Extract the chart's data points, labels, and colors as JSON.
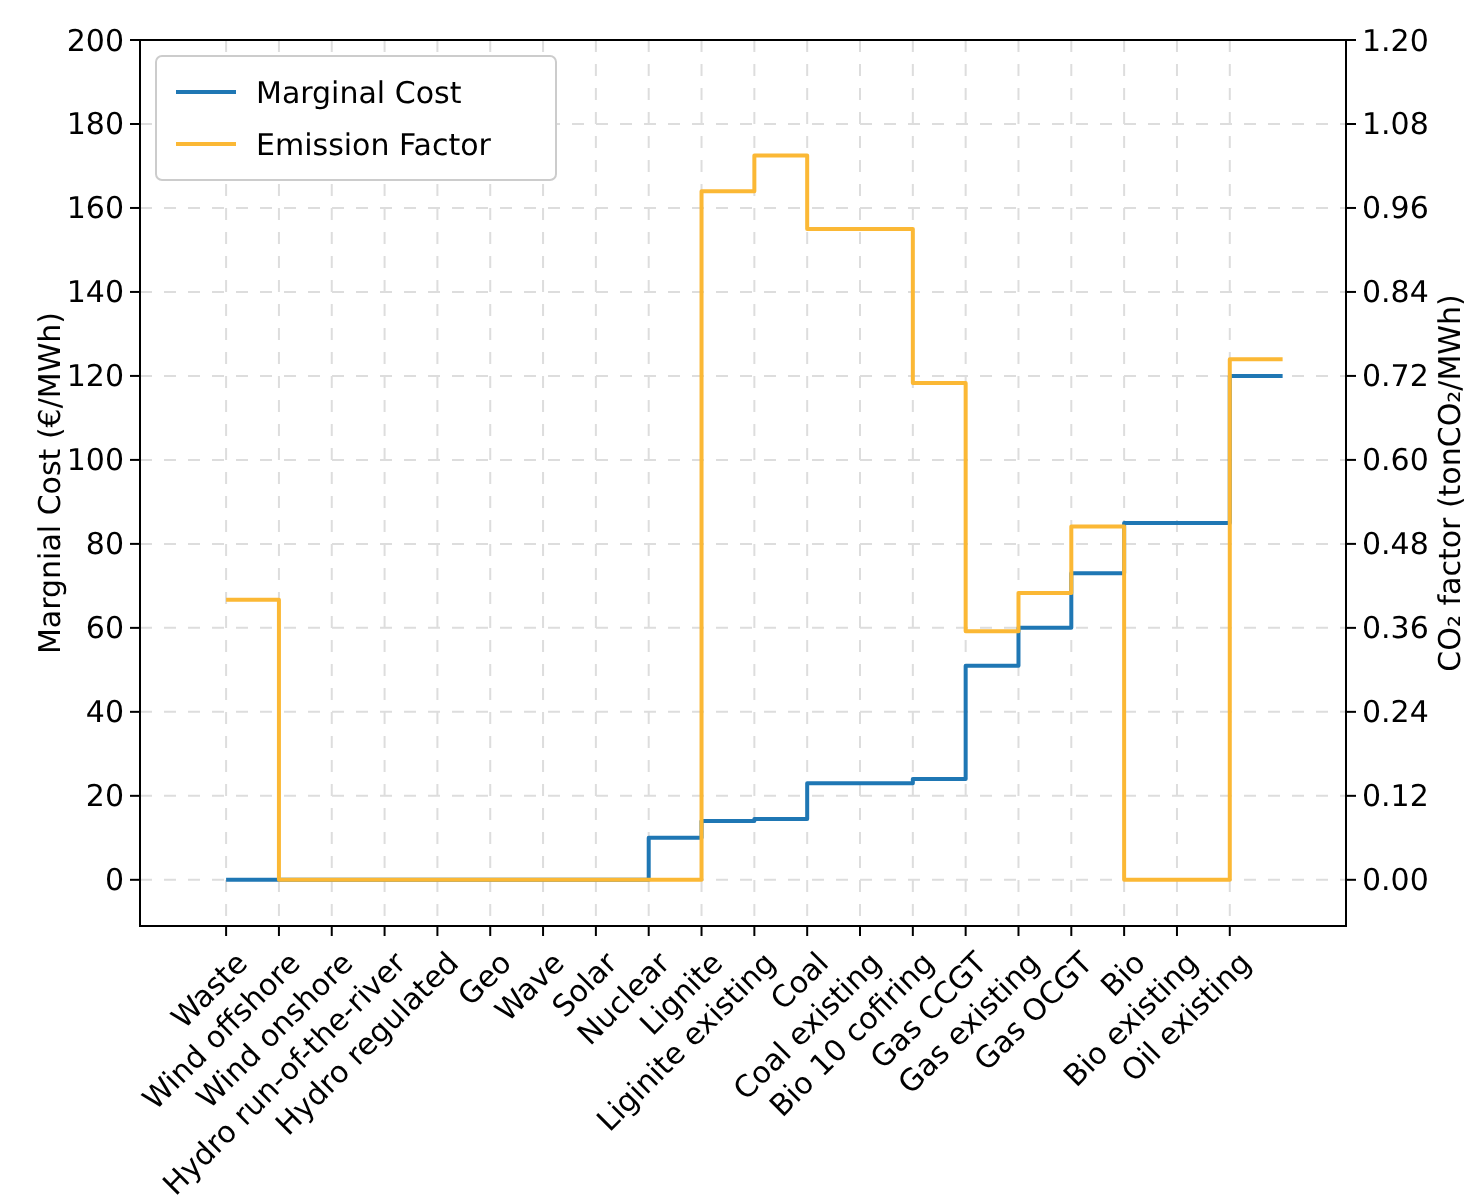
{
  "chart_data": {
    "type": "step",
    "ylabel": "Margnial Cost (€/MWh)",
    "y2label": "CO₂ factor (tonCO₂/MWh)",
    "categories": [
      "Waste",
      "Wind offshore",
      "Wind onshore",
      "Hydro run-of-the-river",
      "Hydro regulated",
      "Geo",
      "Wave",
      "Solar",
      "Nuclear",
      "Lignite",
      "Liginite existing",
      "Coal",
      "Coal existing",
      "Bio 10 cofiring",
      "Gas CCGT",
      "Gas existing",
      "Gas OCGT",
      "Bio",
      "Bio existing",
      "Oil existing"
    ],
    "series": [
      {
        "name": "Marginal Cost",
        "color": "#1f77b4",
        "values": [
          0,
          0,
          0,
          0,
          0,
          0,
          0,
          0,
          10,
          14,
          14.5,
          23,
          23,
          24,
          51,
          60,
          73,
          85,
          85,
          120
        ]
      },
      {
        "name": "Emission Factor",
        "color": "#fbb835",
        "axis": "y2",
        "values": [
          0.4,
          0,
          0,
          0,
          0,
          0,
          0,
          0,
          0,
          0.984,
          1.035,
          0.93,
          0.93,
          0.71,
          0.355,
          0.41,
          0.505,
          0,
          0,
          0.744
        ]
      }
    ],
    "ylim": [
      -11,
      200
    ],
    "yticks": [
      0,
      20,
      40,
      60,
      80,
      100,
      120,
      140,
      160,
      180,
      200
    ],
    "y2lim": [
      -0.066,
      1.2
    ],
    "y2ticks": [
      {
        "value": 0,
        "label": "0.00"
      },
      {
        "value": 0.12,
        "label": "0.12"
      },
      {
        "value": 0.24,
        "label": "0.24"
      },
      {
        "value": 0.36,
        "label": "0.36"
      },
      {
        "value": 0.48,
        "label": "0.48"
      },
      {
        "value": 0.6,
        "label": "0.60"
      },
      {
        "value": 0.72,
        "label": "0.72"
      },
      {
        "value": 0.84,
        "label": "0.84"
      },
      {
        "value": 0.96,
        "label": "0.96"
      },
      {
        "value": 1.08,
        "label": "1.08"
      },
      {
        "value": 1.2,
        "label": "1.20"
      }
    ],
    "grid": true,
    "legend": "top left"
  }
}
